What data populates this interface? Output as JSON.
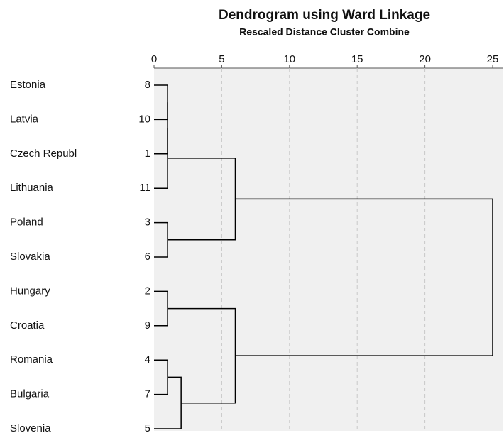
{
  "chart_data": {
    "type": "dendrogram",
    "title": "Dendrogram using Ward Linkage",
    "subtitle": "Rescaled Distance Cluster Combine",
    "leaves": [
      {
        "label": "Estonia",
        "id": 8
      },
      {
        "label": "Latvia",
        "id": 10
      },
      {
        "label": "Czech Republ",
        "id": 1
      },
      {
        "label": "Lithuania",
        "id": 11
      },
      {
        "label": "Poland",
        "id": 3
      },
      {
        "label": "Slovakia",
        "id": 6
      },
      {
        "label": "Hungary",
        "id": 2
      },
      {
        "label": "Croatia",
        "id": 9
      },
      {
        "label": "Romania",
        "id": 4
      },
      {
        "label": "Bulgaria",
        "id": 7
      },
      {
        "label": "Slovenia",
        "id": 5
      }
    ],
    "merges": [
      {
        "children": [
          0,
          1
        ],
        "height": 1
      },
      {
        "children": [
          11,
          2
        ],
        "height": 1
      },
      {
        "children": [
          12,
          3
        ],
        "height": 1
      },
      {
        "children": [
          4,
          5
        ],
        "height": 1
      },
      {
        "children": [
          13,
          14
        ],
        "height": 6
      },
      {
        "children": [
          6,
          7
        ],
        "height": 1
      },
      {
        "children": [
          8,
          9
        ],
        "height": 1
      },
      {
        "children": [
          17,
          10
        ],
        "height": 2
      },
      {
        "children": [
          16,
          18
        ],
        "height": 6
      },
      {
        "children": [
          15,
          19
        ],
        "height": 25
      }
    ],
    "xlim": [
      0,
      25
    ],
    "xticks": [
      0,
      5,
      10,
      15,
      20,
      25
    ],
    "grid": true,
    "color": "#000000"
  }
}
